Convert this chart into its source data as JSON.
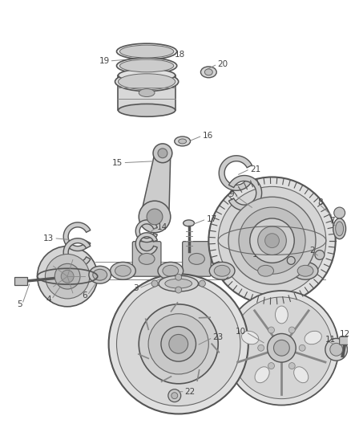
{
  "background_color": "#ffffff",
  "line_color": "#444444",
  "text_color": "#444444",
  "label_fontsize": 7.5,
  "figsize": [
    4.38,
    5.33
  ],
  "dpi": 100
}
